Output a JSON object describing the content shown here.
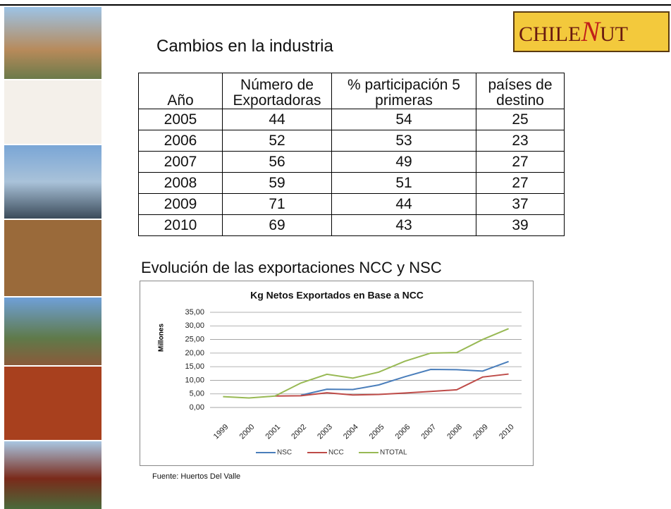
{
  "header": {
    "title": "Cambios en la industria",
    "logo": {
      "left": "CHILE",
      "mark": "N",
      "right": "UT"
    }
  },
  "table": {
    "headers": [
      "Año",
      "Número de Exportadoras",
      "% participación 5 primeras",
      "países de destino"
    ],
    "rows": [
      [
        2005,
        44,
        54,
        25
      ],
      [
        2006,
        52,
        53,
        23
      ],
      [
        2007,
        56,
        49,
        27
      ],
      [
        2008,
        59,
        51,
        27
      ],
      [
        2009,
        71,
        44,
        37
      ],
      [
        2010,
        69,
        43,
        39
      ]
    ]
  },
  "section_title": "Evolución de las exportaciones NCC y NSC",
  "chart_data": {
    "type": "line",
    "title": "Kg Netos Exportados en Base a NCC",
    "y_label": "Millones",
    "categories": [
      "1999",
      "2000",
      "2001",
      "2002",
      "2003",
      "2004",
      "2005",
      "2006",
      "2007",
      "2008",
      "2009",
      "2010"
    ],
    "series": [
      {
        "name": "NSC",
        "color": "#4a7ebb",
        "values": [
          null,
          null,
          null,
          4.5,
          6.7,
          6.6,
          8.3,
          11.3,
          14.0,
          13.9,
          13.4,
          16.9
        ]
      },
      {
        "name": "NCC",
        "color": "#be4b48",
        "values": [
          null,
          null,
          4.2,
          4.3,
          5.4,
          4.6,
          4.8,
          5.3,
          5.9,
          6.5,
          11.2,
          12.3
        ]
      },
      {
        "name": "NTOTAL",
        "color": "#98b954",
        "values": [
          4.0,
          3.5,
          4.2,
          9.0,
          12.2,
          10.8,
          13.0,
          17.0,
          20.0,
          20.2,
          25.0,
          29.0
        ]
      }
    ],
    "ylim": [
      0,
      35
    ],
    "yticks": [
      {
        "value": 0,
        "label": "0,00"
      },
      {
        "value": 5,
        "label": "5,00"
      },
      {
        "value": 10,
        "label": "10,00"
      },
      {
        "value": 15,
        "label": "15,00"
      },
      {
        "value": 20,
        "label": "20,00"
      },
      {
        "value": 25,
        "label": "25,00"
      },
      {
        "value": 30,
        "label": "30,00"
      },
      {
        "value": 35,
        "label": "35,00"
      }
    ],
    "grid": true,
    "legend": "bottom"
  },
  "source": "Fuente: Huertos Del Valle"
}
